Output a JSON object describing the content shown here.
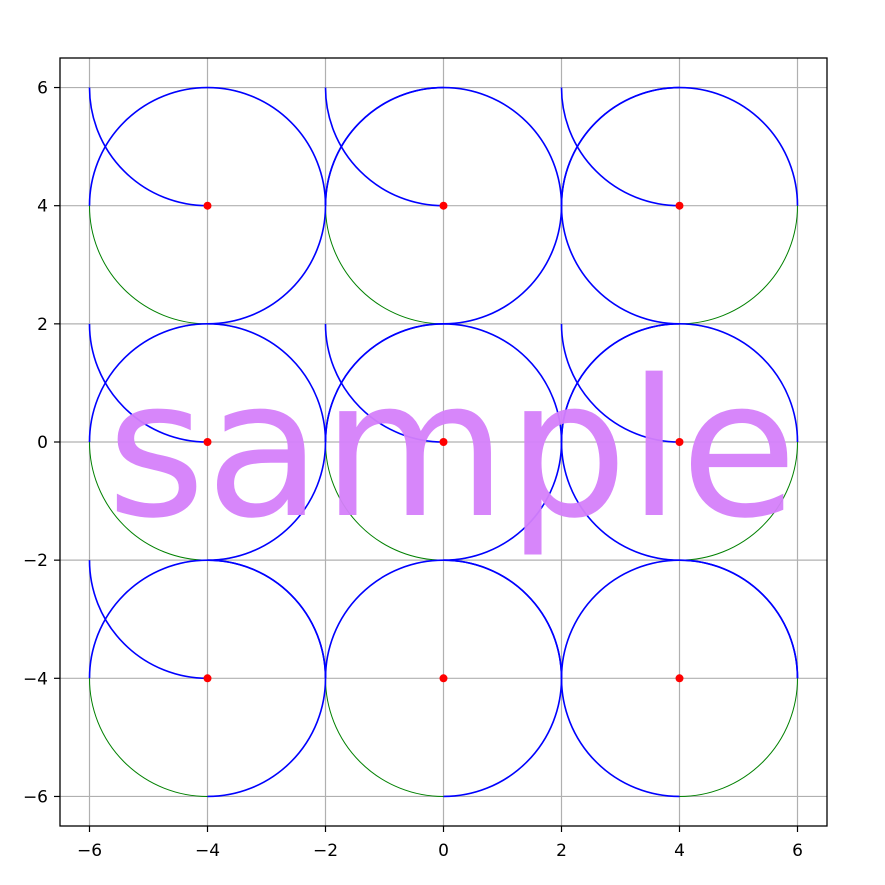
{
  "chart_data": {
    "type": "line",
    "title": "",
    "xlabel": "",
    "ylabel": "",
    "xlim": [
      -6.5,
      6.5
    ],
    "ylim": [
      -6.5,
      6.5
    ],
    "grid": true,
    "aspect": "equal",
    "x_ticks": [
      -6,
      -4,
      -2,
      0,
      2,
      4,
      6
    ],
    "y_ticks": [
      -6,
      -4,
      -2,
      0,
      2,
      4,
      6
    ],
    "x_tick_labels": [
      "−6",
      "−4",
      "−2",
      "0",
      "2",
      "4",
      "6"
    ],
    "y_tick_labels": [
      "−6",
      "−4",
      "−2",
      "0",
      "2",
      "4",
      "6"
    ],
    "circle_radius": 2,
    "centers": [
      {
        "x": -4,
        "y": 4
      },
      {
        "x": 0,
        "y": 4
      },
      {
        "x": 4,
        "y": 4
      },
      {
        "x": -4,
        "y": 0
      },
      {
        "x": 0,
        "y": 0
      },
      {
        "x": 4,
        "y": 0
      },
      {
        "x": -4,
        "y": -4
      },
      {
        "x": 0,
        "y": -4
      },
      {
        "x": 4,
        "y": -4
      }
    ],
    "arc_pattern": [
      [
        [
          0,
          180
        ],
        [
          270,
          360
        ]
      ],
      [
        [
          0,
          180
        ],
        [
          270,
          360
        ]
      ],
      [
        [
          90,
          270
        ],
        [
          0,
          90
        ]
      ]
    ],
    "corner_arcs": [
      {
        "at": [
          -4,
          6
        ],
        "from": 180,
        "to": 270
      },
      {
        "at": [
          0,
          6
        ],
        "from": 180,
        "to": 270
      },
      {
        "at": [
          4,
          6
        ],
        "from": 180,
        "to": 270
      },
      {
        "at": [
          0,
          4
        ],
        "from": 90,
        "to": 180
      },
      {
        "at": [
          4,
          4
        ],
        "from": 90,
        "to": 180
      },
      {
        "at": [
          -4,
          2
        ],
        "from": 180,
        "to": 270
      },
      {
        "at": [
          0,
          2
        ],
        "from": 180,
        "to": 270
      },
      {
        "at": [
          4,
          2
        ],
        "from": 180,
        "to": 270
      },
      {
        "at": [
          0,
          0
        ],
        "from": 90,
        "to": 180
      },
      {
        "at": [
          4,
          0
        ],
        "from": 90,
        "to": 180
      },
      {
        "at": [
          -4,
          -2
        ],
        "from": 180,
        "to": 270
      },
      {
        "at": [
          -4,
          -4
        ],
        "from": 0,
        "to": 90
      },
      {
        "at": [
          0,
          -4
        ],
        "from": 0,
        "to": 90
      },
      {
        "at": [
          4,
          -4
        ],
        "from": 0,
        "to": 90
      }
    ],
    "colors": {
      "circles": "#008000",
      "arcs": "#0000ff",
      "centers": "#ff0000",
      "grid": "#b0b0b0",
      "axes": "#000000"
    }
  },
  "watermark": {
    "text": "sample",
    "color": "#d580fa"
  }
}
